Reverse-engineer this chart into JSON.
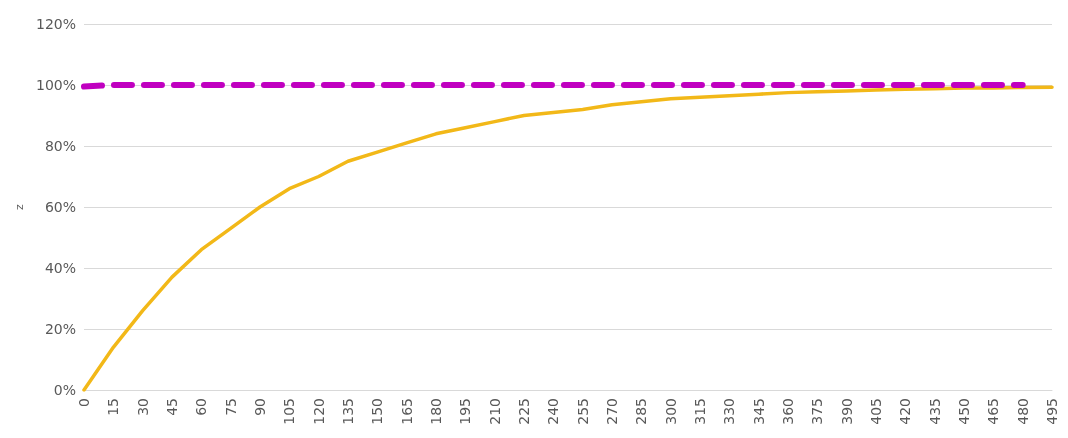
{
  "chart_data": {
    "type": "line",
    "ylabel": "z",
    "categories": [
      "0",
      "15",
      "30",
      "45",
      "60",
      "75",
      "90",
      "105",
      "120",
      "135",
      "150",
      "165",
      "180",
      "195",
      "210",
      "225",
      "240",
      "255",
      "270",
      "285",
      "300",
      "315",
      "330",
      "345",
      "360",
      "375",
      "390",
      "405",
      "420",
      "435",
      "450",
      "465",
      "480",
      "495"
    ],
    "series": [
      {
        "color": "#f2b818",
        "line_style": "solid",
        "values": [
          0,
          14,
          26,
          37,
          46,
          53,
          60,
          66,
          70,
          75,
          78,
          81,
          84,
          86,
          88,
          90,
          91,
          92,
          93.5,
          94.5,
          95.5,
          96,
          96.5,
          97,
          97.5,
          97.8,
          98,
          98.4,
          98.6,
          98.8,
          99,
          99,
          99.2,
          99.3
        ]
      },
      {
        "color": "#c000c0",
        "line_style": "dashed",
        "values": [
          99.5,
          100,
          100,
          100,
          100,
          100,
          100,
          100,
          100,
          100,
          100,
          100,
          100,
          100,
          100,
          100,
          100,
          100,
          100,
          100,
          100,
          100,
          100,
          100,
          100,
          100,
          100,
          100,
          100,
          100,
          100,
          100,
          100,
          null
        ]
      }
    ],
    "ylim": [
      0,
      120
    ],
    "yticks": [
      {
        "value": 0,
        "label": "0%"
      },
      {
        "value": 20,
        "label": "20%"
      },
      {
        "value": 40,
        "label": "40%"
      },
      {
        "value": 60,
        "label": "60%"
      },
      {
        "value": 80,
        "label": "80%"
      },
      {
        "value": 100,
        "label": "100%"
      },
      {
        "value": 120,
        "label": "120%"
      }
    ],
    "grid": "y",
    "marker": "none"
  }
}
